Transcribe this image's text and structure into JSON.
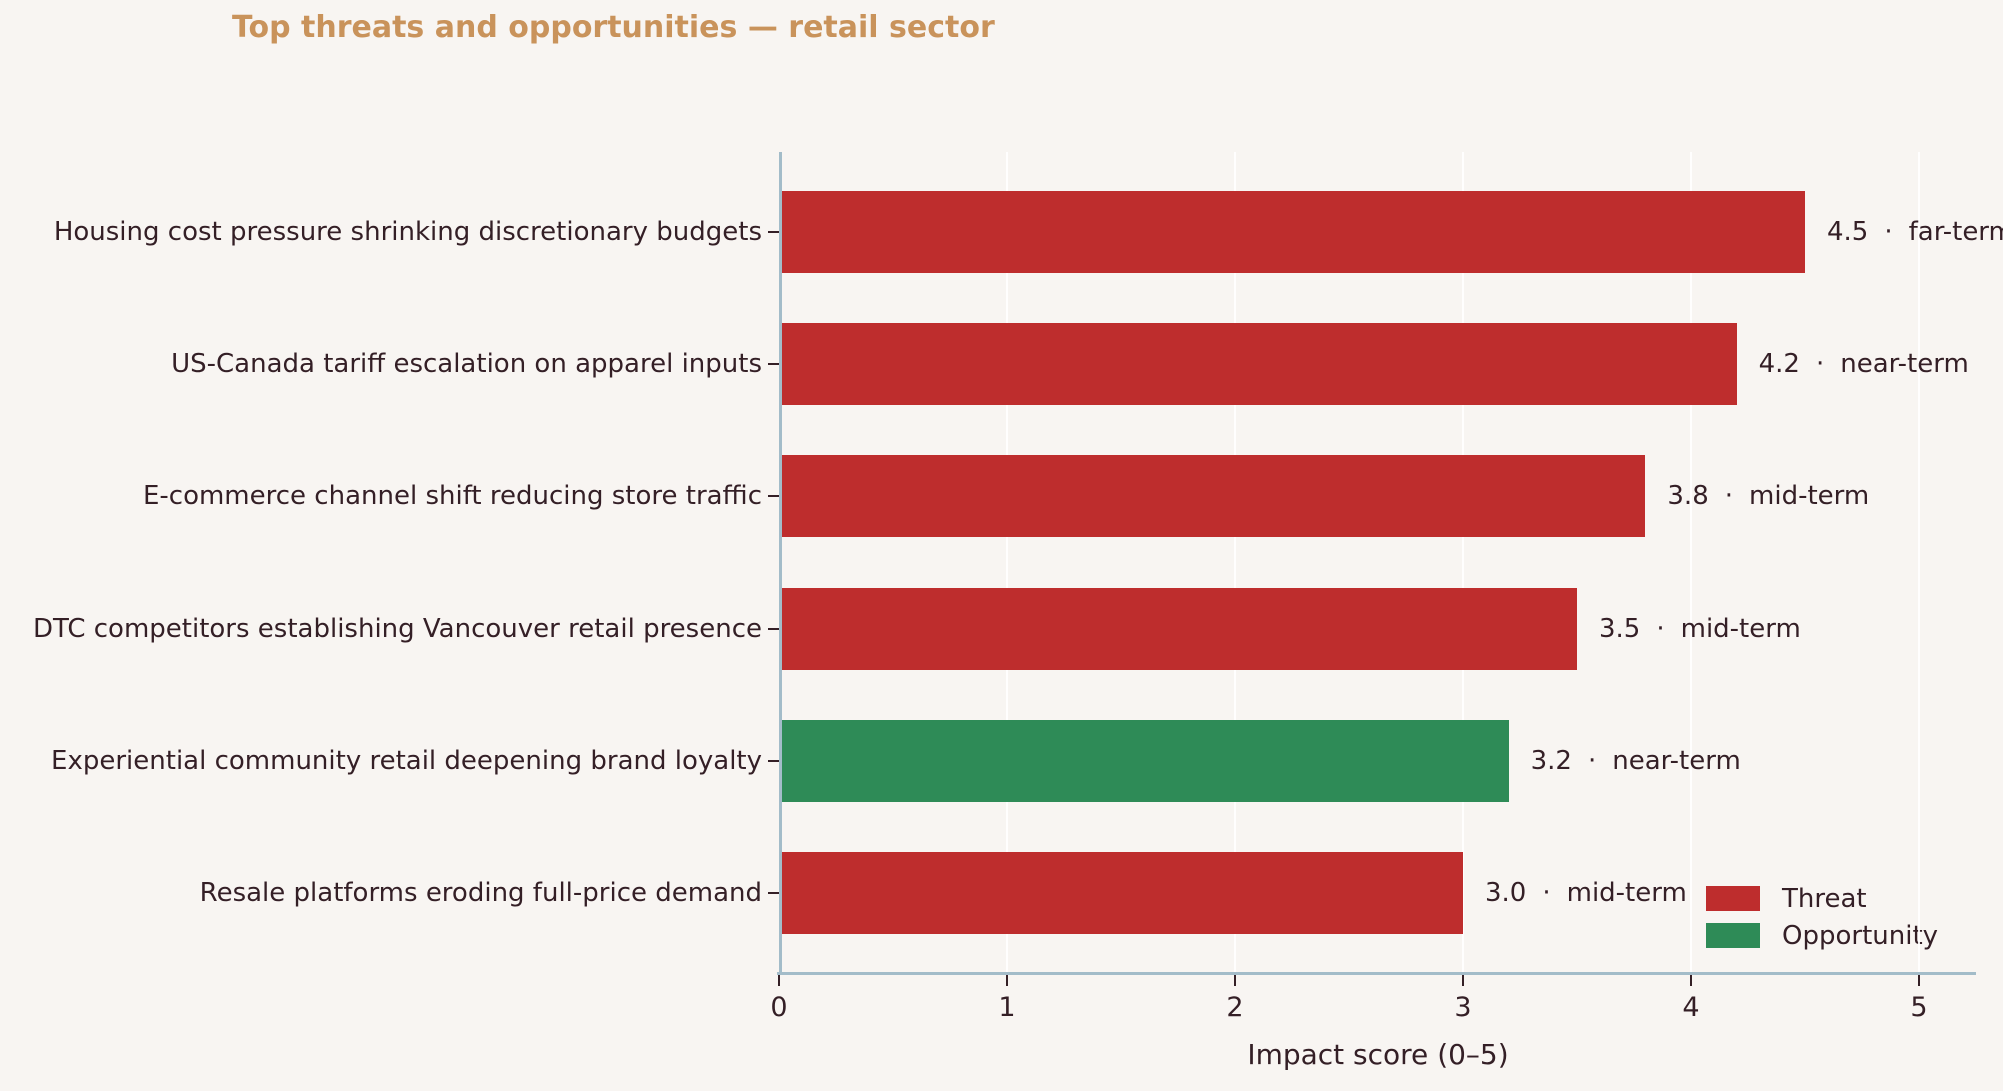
{
  "colors": {
    "background": "#F8F5F2",
    "title": "#C9935B",
    "text": "#341F26",
    "spine": "#A3BCC9",
    "gridline": "#FCFBF9"
  },
  "chart_data": {
    "type": "bar",
    "orientation": "horizontal",
    "title": "Top threats and opportunities — retail sector",
    "xlabel": "Impact score (0–5)",
    "xlim": [
      0,
      5.25
    ],
    "xticks": [
      "0",
      "1",
      "2",
      "3",
      "4",
      "5"
    ],
    "grid": true,
    "annotation_separator": "·",
    "series_colors": {
      "Threat": "#BE2D2D",
      "Opportunity": "#2E8B57"
    },
    "bars": [
      {
        "label": "Housing cost pressure shrinking discretionary budgets",
        "value": 4.5,
        "value_label": "4.5",
        "term": "far-term",
        "series": "Threat"
      },
      {
        "label": "US-Canada tariff escalation on apparel inputs",
        "value": 4.2,
        "value_label": "4.2",
        "term": "near-term",
        "series": "Threat"
      },
      {
        "label": "E-commerce channel shift reducing store traffic",
        "value": 3.8,
        "value_label": "3.8",
        "term": "mid-term",
        "series": "Threat"
      },
      {
        "label": "DTC competitors establishing Vancouver retail presence",
        "value": 3.5,
        "value_label": "3.5",
        "term": "mid-term",
        "series": "Threat"
      },
      {
        "label": "Experiential community retail deepening brand loyalty",
        "value": 3.2,
        "value_label": "3.2",
        "term": "near-term",
        "series": "Opportunity"
      },
      {
        "label": "Resale platforms eroding full-price demand",
        "value": 3.0,
        "value_label": "3.0",
        "term": "mid-term",
        "series": "Threat"
      }
    ],
    "legend": {
      "position": "lower right",
      "entries": [
        {
          "label": "Threat",
          "color": "#BE2D2D"
        },
        {
          "label": "Opportunity",
          "color": "#2E8B57"
        }
      ]
    }
  }
}
